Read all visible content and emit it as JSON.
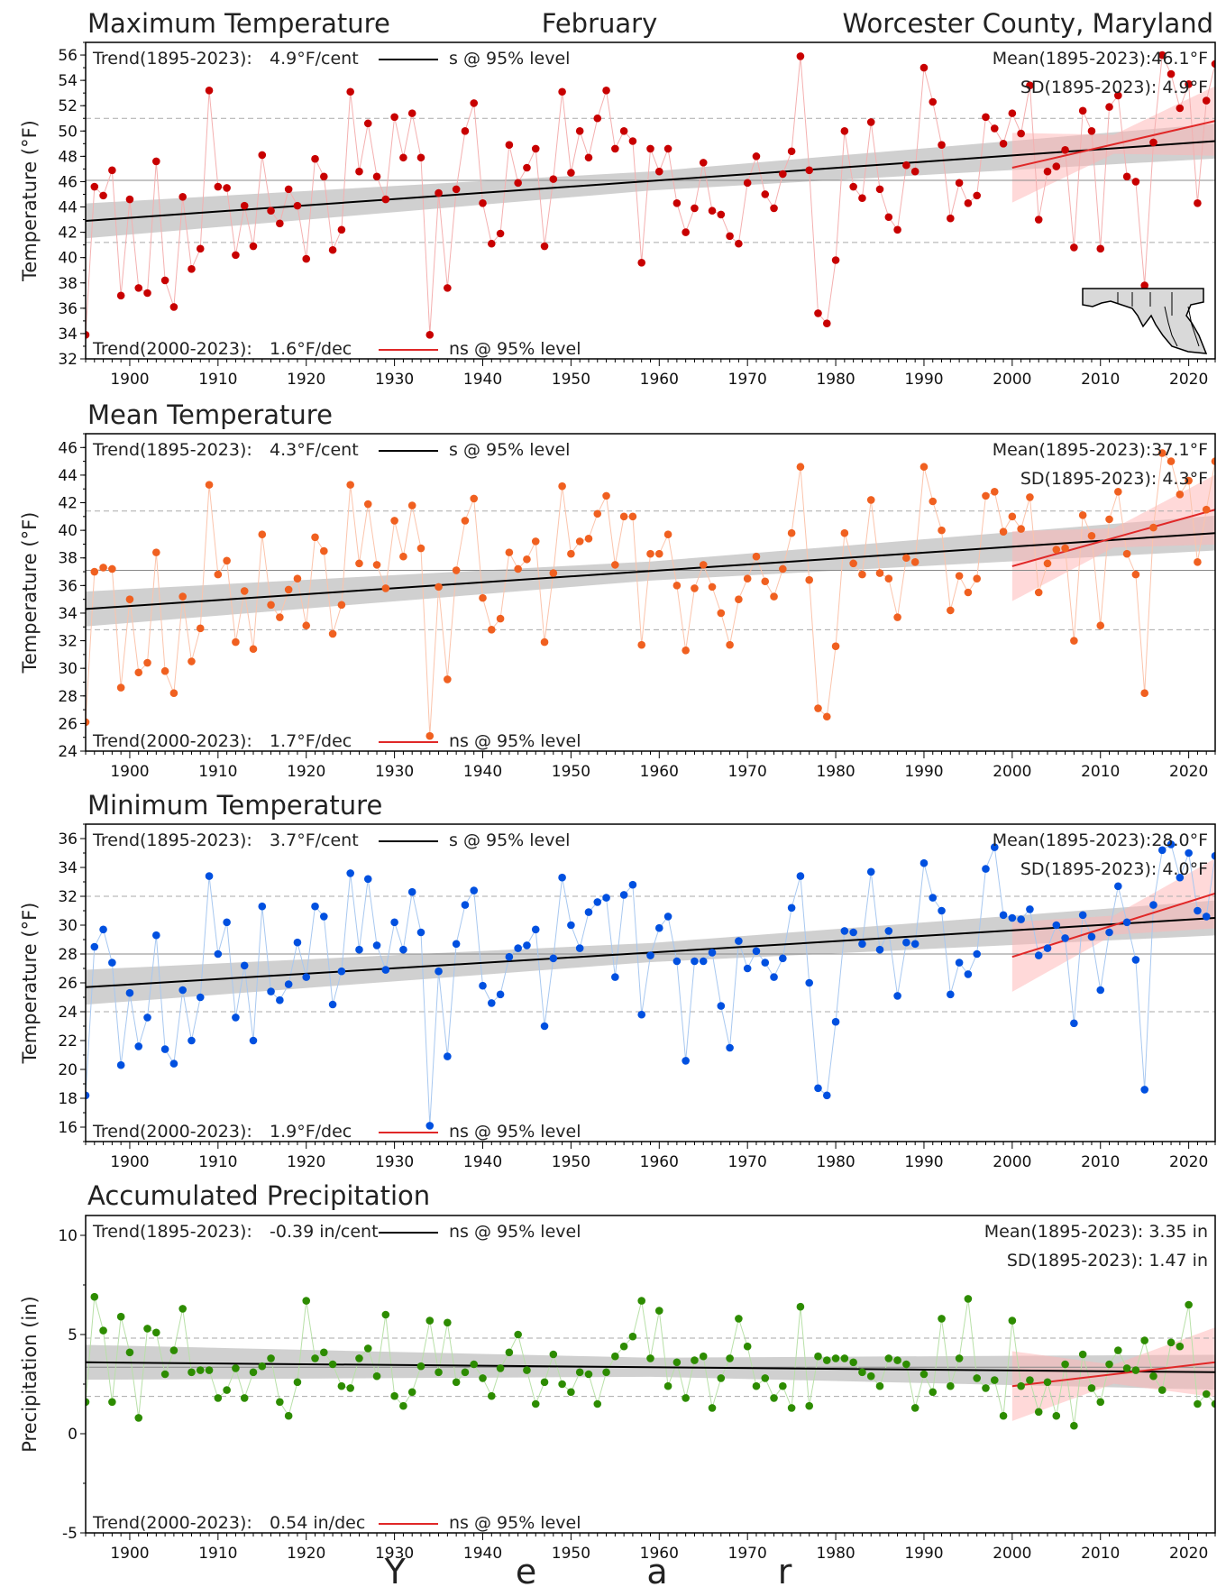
{
  "header": {
    "left": "Maximum Temperature",
    "center": "February",
    "right": "Worcester County, Maryland"
  },
  "xaxis_label": "Y e a r",
  "chart_data": [
    {
      "type": "scatter",
      "title": "Maximum Temperature",
      "ylabel": "Temperature (°F)",
      "ylim": [
        32,
        57
      ],
      "yticks": [
        32,
        34,
        36,
        38,
        40,
        42,
        44,
        46,
        48,
        50,
        52,
        54,
        56
      ],
      "xlim": [
        1895,
        2023
      ],
      "xticks": [
        1900,
        1910,
        1920,
        1930,
        1940,
        1950,
        1960,
        1970,
        1980,
        1990,
        2000,
        2010,
        2020
      ],
      "color": "#c80000",
      "line_color": "#f4b0b0",
      "trend_long": {
        "label": "Trend(1895-2023):",
        "value": "4.9°F/cent",
        "sig": "s @ 95% level",
        "start": 42.9,
        "end": 49.2
      },
      "trend_recent": {
        "label": "Trend(2000-2023):",
        "value": "1.6°F/dec",
        "sig": "ns @ 95% level",
        "start": 47.1,
        "end": 50.8
      },
      "mean_text": "Mean(1895-2023):46.1°F",
      "sd_text": "SD(1895-2023): 4.9°F",
      "mean": 46.1,
      "sd": 4.9,
      "values": [
        33.9,
        45.6,
        44.9,
        46.9,
        37.0,
        44.6,
        37.6,
        37.2,
        47.6,
        38.2,
        36.1,
        44.8,
        39.1,
        40.7,
        53.2,
        45.6,
        45.5,
        40.2,
        44.1,
        40.9,
        48.1,
        43.7,
        42.7,
        45.4,
        44.1,
        39.9,
        47.8,
        46.4,
        40.6,
        42.2,
        53.1,
        46.8,
        50.6,
        46.4,
        44.6,
        51.1,
        47.9,
        51.4,
        47.9,
        33.9,
        45.1,
        37.6,
        45.4,
        50.0,
        52.2,
        44.3,
        41.1,
        41.9,
        48.9,
        45.9,
        47.1,
        48.6,
        40.9,
        46.2,
        53.1,
        46.7,
        50.0,
        47.9,
        51.0,
        53.2,
        48.6,
        50.0,
        49.2,
        39.6,
        48.6,
        46.8,
        48.6,
        44.3,
        42.0,
        43.9,
        47.5,
        43.7,
        43.4,
        41.7,
        41.1,
        45.9,
        48.0,
        45.0,
        43.9,
        46.6,
        48.4,
        55.9,
        46.9,
        35.6,
        34.8,
        39.8,
        50.0,
        45.6,
        44.7,
        50.7,
        45.4,
        43.2,
        42.2,
        47.3,
        46.8,
        55.0,
        52.3,
        48.9,
        43.1,
        45.9,
        44.3,
        44.9,
        51.1,
        50.2,
        49.0,
        51.4,
        49.8,
        53.6,
        43.0,
        46.8,
        47.2,
        48.5,
        40.8,
        51.6,
        50.0,
        40.7,
        51.9,
        52.8,
        46.4,
        46.0,
        37.8,
        49.1,
        56.0,
        54.5,
        51.8,
        53.7,
        44.3,
        52.4,
        55.3
      ]
    },
    {
      "type": "scatter",
      "title": "Mean Temperature",
      "ylabel": "Temperature (°F)",
      "ylim": [
        24,
        47
      ],
      "yticks": [
        24,
        26,
        28,
        30,
        32,
        34,
        36,
        38,
        40,
        42,
        44,
        46
      ],
      "xlim": [
        1895,
        2023
      ],
      "xticks": [
        1900,
        1910,
        1920,
        1930,
        1940,
        1950,
        1960,
        1970,
        1980,
        1990,
        2000,
        2010,
        2020
      ],
      "color": "#f06020",
      "line_color": "#fbc4ac",
      "trend_long": {
        "label": "Trend(1895-2023):",
        "value": "4.3°F/cent",
        "sig": "s @ 95% level",
        "start": 34.3,
        "end": 39.8
      },
      "trend_recent": {
        "label": "Trend(2000-2023):",
        "value": "1.7°F/dec",
        "sig": "ns @ 95% level",
        "start": 37.4,
        "end": 41.5
      },
      "mean_text": "Mean(1895-2023):37.1°F",
      "sd_text": "SD(1895-2023): 4.3°F",
      "mean": 37.1,
      "sd": 4.3,
      "values": [
        26.1,
        37.0,
        37.3,
        37.2,
        28.6,
        35.0,
        29.7,
        30.4,
        38.4,
        29.8,
        28.2,
        35.2,
        30.5,
        32.9,
        43.3,
        36.8,
        37.8,
        31.9,
        35.6,
        31.4,
        39.7,
        34.6,
        33.7,
        35.7,
        36.5,
        33.1,
        39.5,
        38.5,
        32.5,
        34.6,
        43.3,
        37.6,
        41.9,
        37.5,
        35.8,
        40.7,
        38.1,
        41.8,
        38.7,
        25.1,
        35.9,
        29.2,
        37.1,
        40.7,
        42.3,
        35.1,
        32.8,
        33.6,
        38.4,
        37.2,
        37.9,
        39.2,
        31.9,
        36.9,
        43.2,
        38.3,
        39.2,
        39.4,
        41.2,
        42.5,
        37.5,
        41.0,
        41.0,
        31.7,
        38.3,
        38.3,
        39.7,
        36.0,
        31.3,
        35.8,
        37.5,
        35.9,
        34.0,
        31.7,
        35.0,
        36.5,
        38.1,
        36.3,
        35.2,
        37.2,
        39.8,
        44.6,
        36.4,
        27.1,
        26.5,
        31.6,
        39.8,
        37.6,
        36.8,
        42.2,
        36.9,
        36.5,
        33.7,
        38.0,
        37.7,
        44.6,
        42.1,
        40.0,
        34.2,
        36.7,
        35.5,
        36.5,
        42.5,
        42.8,
        39.9,
        41.0,
        40.1,
        42.4,
        35.5,
        37.6,
        38.6,
        38.7,
        32.0,
        41.1,
        39.6,
        33.1,
        40.8,
        42.8,
        38.3,
        36.8,
        28.2,
        40.2,
        45.6,
        45.0,
        42.6,
        43.6,
        37.7,
        41.5,
        45.0
      ]
    },
    {
      "type": "scatter",
      "title": "Minimum Temperature",
      "ylabel": "Temperature (°F)",
      "ylim": [
        15,
        37
      ],
      "yticks": [
        16,
        18,
        20,
        22,
        24,
        26,
        28,
        30,
        32,
        34,
        36
      ],
      "xlim": [
        1895,
        2023
      ],
      "xticks": [
        1900,
        1910,
        1920,
        1930,
        1940,
        1950,
        1960,
        1970,
        1980,
        1990,
        2000,
        2010,
        2020
      ],
      "color": "#0050e0",
      "line_color": "#a8c8f0",
      "trend_long": {
        "label": "Trend(1895-2023):",
        "value": "3.7°F/cent",
        "sig": "s @ 95% level",
        "start": 25.7,
        "end": 30.5
      },
      "trend_recent": {
        "label": "Trend(2000-2023):",
        "value": "1.9°F/dec",
        "sig": "ns @ 95% level",
        "start": 27.8,
        "end": 32.2
      },
      "mean_text": "Mean(1895-2023):28.0°F",
      "sd_text": "SD(1895-2023): 4.0°F",
      "mean": 28.0,
      "sd": 4.0,
      "values": [
        18.2,
        28.5,
        29.7,
        27.4,
        20.3,
        25.3,
        21.6,
        23.6,
        29.3,
        21.4,
        20.4,
        25.5,
        22.0,
        25.0,
        33.4,
        28.0,
        30.2,
        23.6,
        27.2,
        22.0,
        31.3,
        25.4,
        24.8,
        25.9,
        28.8,
        26.4,
        31.3,
        30.6,
        24.5,
        26.8,
        33.6,
        28.3,
        33.2,
        28.6,
        26.9,
        30.2,
        28.3,
        32.3,
        29.5,
        16.1,
        26.8,
        20.9,
        28.7,
        31.4,
        32.4,
        25.8,
        24.6,
        25.2,
        27.8,
        28.4,
        28.6,
        29.7,
        23.0,
        27.7,
        33.3,
        30.0,
        28.4,
        30.9,
        31.6,
        31.9,
        26.4,
        32.1,
        32.8,
        23.8,
        27.9,
        29.8,
        30.6,
        27.5,
        20.6,
        27.5,
        27.5,
        28.1,
        24.4,
        21.5,
        28.9,
        27.0,
        28.2,
        27.4,
        26.4,
        27.7,
        31.2,
        33.4,
        26.0,
        18.7,
        18.2,
        23.3,
        29.6,
        29.5,
        28.7,
        33.7,
        28.3,
        29.6,
        25.1,
        28.8,
        28.7,
        34.3,
        31.9,
        31.0,
        25.2,
        27.4,
        26.6,
        28.0,
        33.9,
        35.4,
        30.7,
        30.5,
        30.4,
        31.1,
        27.9,
        28.4,
        30.0,
        29.1,
        23.2,
        30.7,
        29.2,
        25.5,
        29.5,
        32.7,
        30.2,
        27.6,
        18.6,
        31.4,
        35.2,
        35.6,
        33.3,
        35.0,
        31.0,
        30.6,
        34.8
      ]
    },
    {
      "type": "scatter",
      "title": "Accumulated Precipitation",
      "ylabel": "Precipitation (in)",
      "ylim": [
        -5,
        11
      ],
      "yticks": [
        -5,
        0,
        5,
        10
      ],
      "xlim": [
        1895,
        2023
      ],
      "xticks": [
        1900,
        1910,
        1920,
        1930,
        1940,
        1950,
        1960,
        1970,
        1980,
        1990,
        2000,
        2010,
        2020
      ],
      "color": "#2d8c00",
      "line_color": "#b8e0a8",
      "trend_long": {
        "label": "Trend(1895-2023):",
        "value": "-0.39 in/cent",
        "sig": "ns @ 95% level",
        "start": 3.6,
        "end": 3.1
      },
      "trend_recent": {
        "label": "Trend(2000-2023):",
        "value": "0.54 in/dec",
        "sig": "ns @ 95% level",
        "start": 2.4,
        "end": 3.6
      },
      "mean_text": "Mean(1895-2023): 3.35 in",
      "sd_text": "SD(1895-2023): 1.47 in",
      "mean": 3.35,
      "sd": 1.47,
      "values": [
        1.6,
        6.9,
        5.2,
        1.6,
        5.9,
        4.1,
        0.8,
        5.3,
        5.1,
        3.0,
        4.2,
        6.3,
        3.1,
        3.2,
        3.2,
        1.8,
        2.2,
        3.3,
        1.8,
        3.1,
        3.4,
        3.8,
        1.6,
        0.9,
        2.6,
        6.7,
        3.8,
        4.1,
        3.5,
        2.4,
        2.3,
        3.8,
        4.3,
        2.9,
        6.0,
        1.9,
        1.4,
        2.1,
        3.4,
        5.7,
        3.1,
        5.6,
        2.6,
        3.1,
        3.5,
        2.8,
        1.9,
        3.3,
        4.1,
        5.0,
        3.2,
        1.5,
        2.6,
        4.0,
        2.5,
        2.1,
        3.1,
        3.0,
        1.5,
        3.1,
        3.9,
        4.4,
        4.9,
        6.7,
        3.8,
        6.2,
        2.4,
        3.6,
        1.8,
        3.7,
        3.9,
        1.3,
        2.8,
        3.8,
        5.8,
        4.4,
        2.4,
        2.8,
        1.8,
        2.4,
        1.3,
        6.4,
        1.4,
        3.9,
        3.7,
        3.8,
        3.8,
        3.6,
        3.1,
        2.9,
        2.4,
        3.8,
        3.7,
        3.5,
        1.3,
        3.0,
        2.1,
        5.8,
        2.4,
        3.8,
        6.8,
        2.8,
        2.3,
        2.7,
        0.9,
        5.7,
        2.4,
        2.7,
        1.1,
        2.6,
        0.9,
        3.5,
        0.4,
        4.0,
        2.3,
        1.6,
        3.5,
        4.2,
        3.3,
        3.2,
        4.7,
        2.9,
        2.2,
        4.6,
        4.4,
        6.5,
        1.5,
        2.0,
        1.5
      ]
    }
  ]
}
